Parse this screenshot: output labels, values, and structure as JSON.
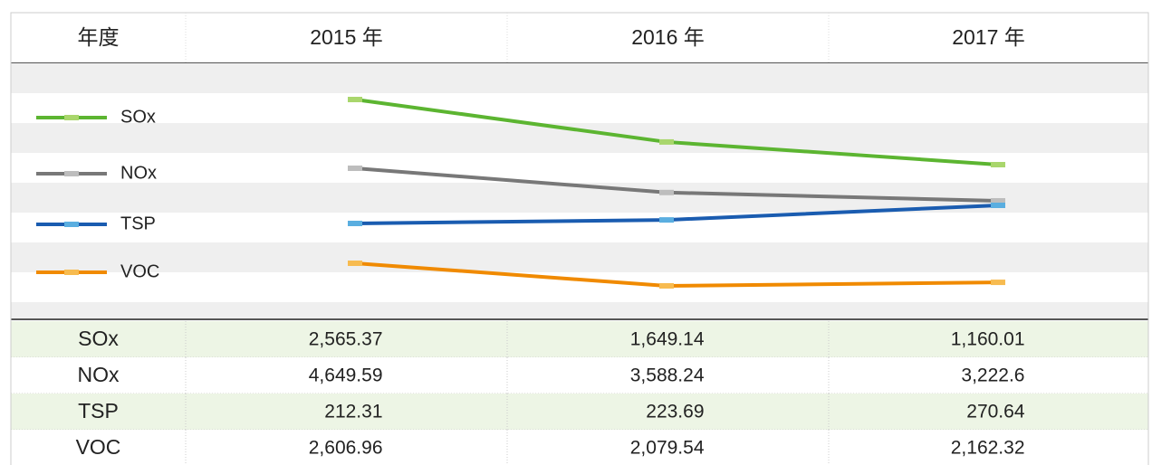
{
  "header": [
    "年度",
    "2015 年",
    "2016 年",
    "2017 年"
  ],
  "series": [
    {
      "name": "SOx",
      "color": "#5cb531",
      "marker": "#a9d66c",
      "values": [
        2565.37,
        1649.14,
        1160.01
      ],
      "value_labels": [
        "2,565.37",
        "1,649.14",
        "1,160.01"
      ]
    },
    {
      "name": "NOx",
      "color": "#787878",
      "marker": "#bdbdbd",
      "values": [
        4649.59,
        3588.24,
        3222.6
      ],
      "value_labels": [
        "4,649.59",
        "3,588.24",
        "3,222.6"
      ]
    },
    {
      "name": "TSP",
      "color": "#1a5cb0",
      "marker": "#5aaee0",
      "values": [
        212.31,
        223.69,
        270.64
      ],
      "value_labels": [
        "212.31",
        "223.69",
        "270.64"
      ]
    },
    {
      "name": "VOC",
      "color": "#f08a00",
      "marker": "#f7bb50",
      "values": [
        2606.96,
        2079.54,
        2162.32
      ],
      "value_labels": [
        "2,606.96",
        "2,079.54",
        "2,162.32"
      ]
    }
  ]
}
